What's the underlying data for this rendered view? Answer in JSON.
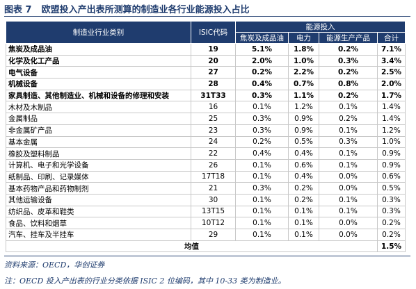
{
  "title": {
    "label": "图表 7",
    "text": "欧盟投入产出表所测算的制造业各行业能源投入占比"
  },
  "table": {
    "header": {
      "category": "制造业行业类别",
      "code": "ISIC代码",
      "group": "能源投入",
      "subcolumns": [
        "焦炭及成品油",
        "电力",
        "能源生产产品",
        "合计"
      ]
    },
    "rows": [
      {
        "bold": true,
        "cells": [
          "焦炭及成品油",
          "19",
          "5.1%",
          "1.8%",
          "0.2%",
          "7.1%"
        ]
      },
      {
        "bold": true,
        "cells": [
          "化学及化工产品",
          "20",
          "2.0%",
          "1.0%",
          "0.3%",
          "3.4%"
        ]
      },
      {
        "bold": true,
        "cells": [
          "电气设备",
          "27",
          "0.2%",
          "2.2%",
          "0.2%",
          "2.5%"
        ]
      },
      {
        "bold": true,
        "cells": [
          "机械设备",
          "28",
          "0.4%",
          "0.7%",
          "0.8%",
          "2.0%"
        ]
      },
      {
        "bold": true,
        "cells": [
          "家具制造、其他制造业、机械和设备的修理和安装",
          "31T33",
          "0.3%",
          "1.1%",
          "0.2%",
          "1.7%"
        ]
      },
      {
        "bold": false,
        "cells": [
          "木材及木制品",
          "16",
          "0.1%",
          "1.2%",
          "0.1%",
          "1.4%"
        ]
      },
      {
        "bold": false,
        "cells": [
          "金属制品",
          "25",
          "0.3%",
          "0.9%",
          "0.2%",
          "1.4%"
        ]
      },
      {
        "bold": false,
        "cells": [
          "非金属矿产品",
          "23",
          "0.3%",
          "0.9%",
          "0.1%",
          "1.2%"
        ]
      },
      {
        "bold": false,
        "cells": [
          "基本金属",
          "24",
          "0.2%",
          "0.5%",
          "0.3%",
          "1.0%"
        ]
      },
      {
        "bold": false,
        "cells": [
          "橡胶及塑料制品",
          "22",
          "0.4%",
          "0.4%",
          "0.1%",
          "0.9%"
        ]
      },
      {
        "bold": false,
        "cells": [
          "计算机、电子和光学设备",
          "26",
          "0.1%",
          "0.6%",
          "0.1%",
          "0.9%"
        ]
      },
      {
        "bold": false,
        "cells": [
          "纸制品、印刷、记录媒体",
          "17T18",
          "0.1%",
          "0.4%",
          "0.0%",
          "0.6%"
        ]
      },
      {
        "bold": false,
        "cells": [
          "基本药物产品和药物制剂",
          "21",
          "0.3%",
          "0.2%",
          "0.0%",
          "0.5%"
        ]
      },
      {
        "bold": false,
        "cells": [
          "其他运输设备",
          "30",
          "0.1%",
          "0.2%",
          "0.1%",
          "0.3%"
        ]
      },
      {
        "bold": false,
        "cells": [
          "纺织品、皮革和鞋类",
          "13T15",
          "0.1%",
          "0.1%",
          "0.1%",
          "0.3%"
        ]
      },
      {
        "bold": false,
        "cells": [
          "食品、饮料和烟草",
          "10T12",
          "0.1%",
          "0.1%",
          "0.0%",
          "0.2%"
        ]
      },
      {
        "bold": false,
        "cells": [
          "汽车、挂车及半挂车",
          "29",
          "0.1%",
          "0.1%",
          "0.0%",
          "0.2%"
        ]
      }
    ],
    "mean": {
      "label": "均值",
      "value": "1.5%"
    }
  },
  "footer": {
    "source": "资料来源：OECD，华创证券",
    "note": "注：OECD 投入产出表的行业分类依据 ISIC 2 位编码，其中 10-33 类为制造业。"
  }
}
